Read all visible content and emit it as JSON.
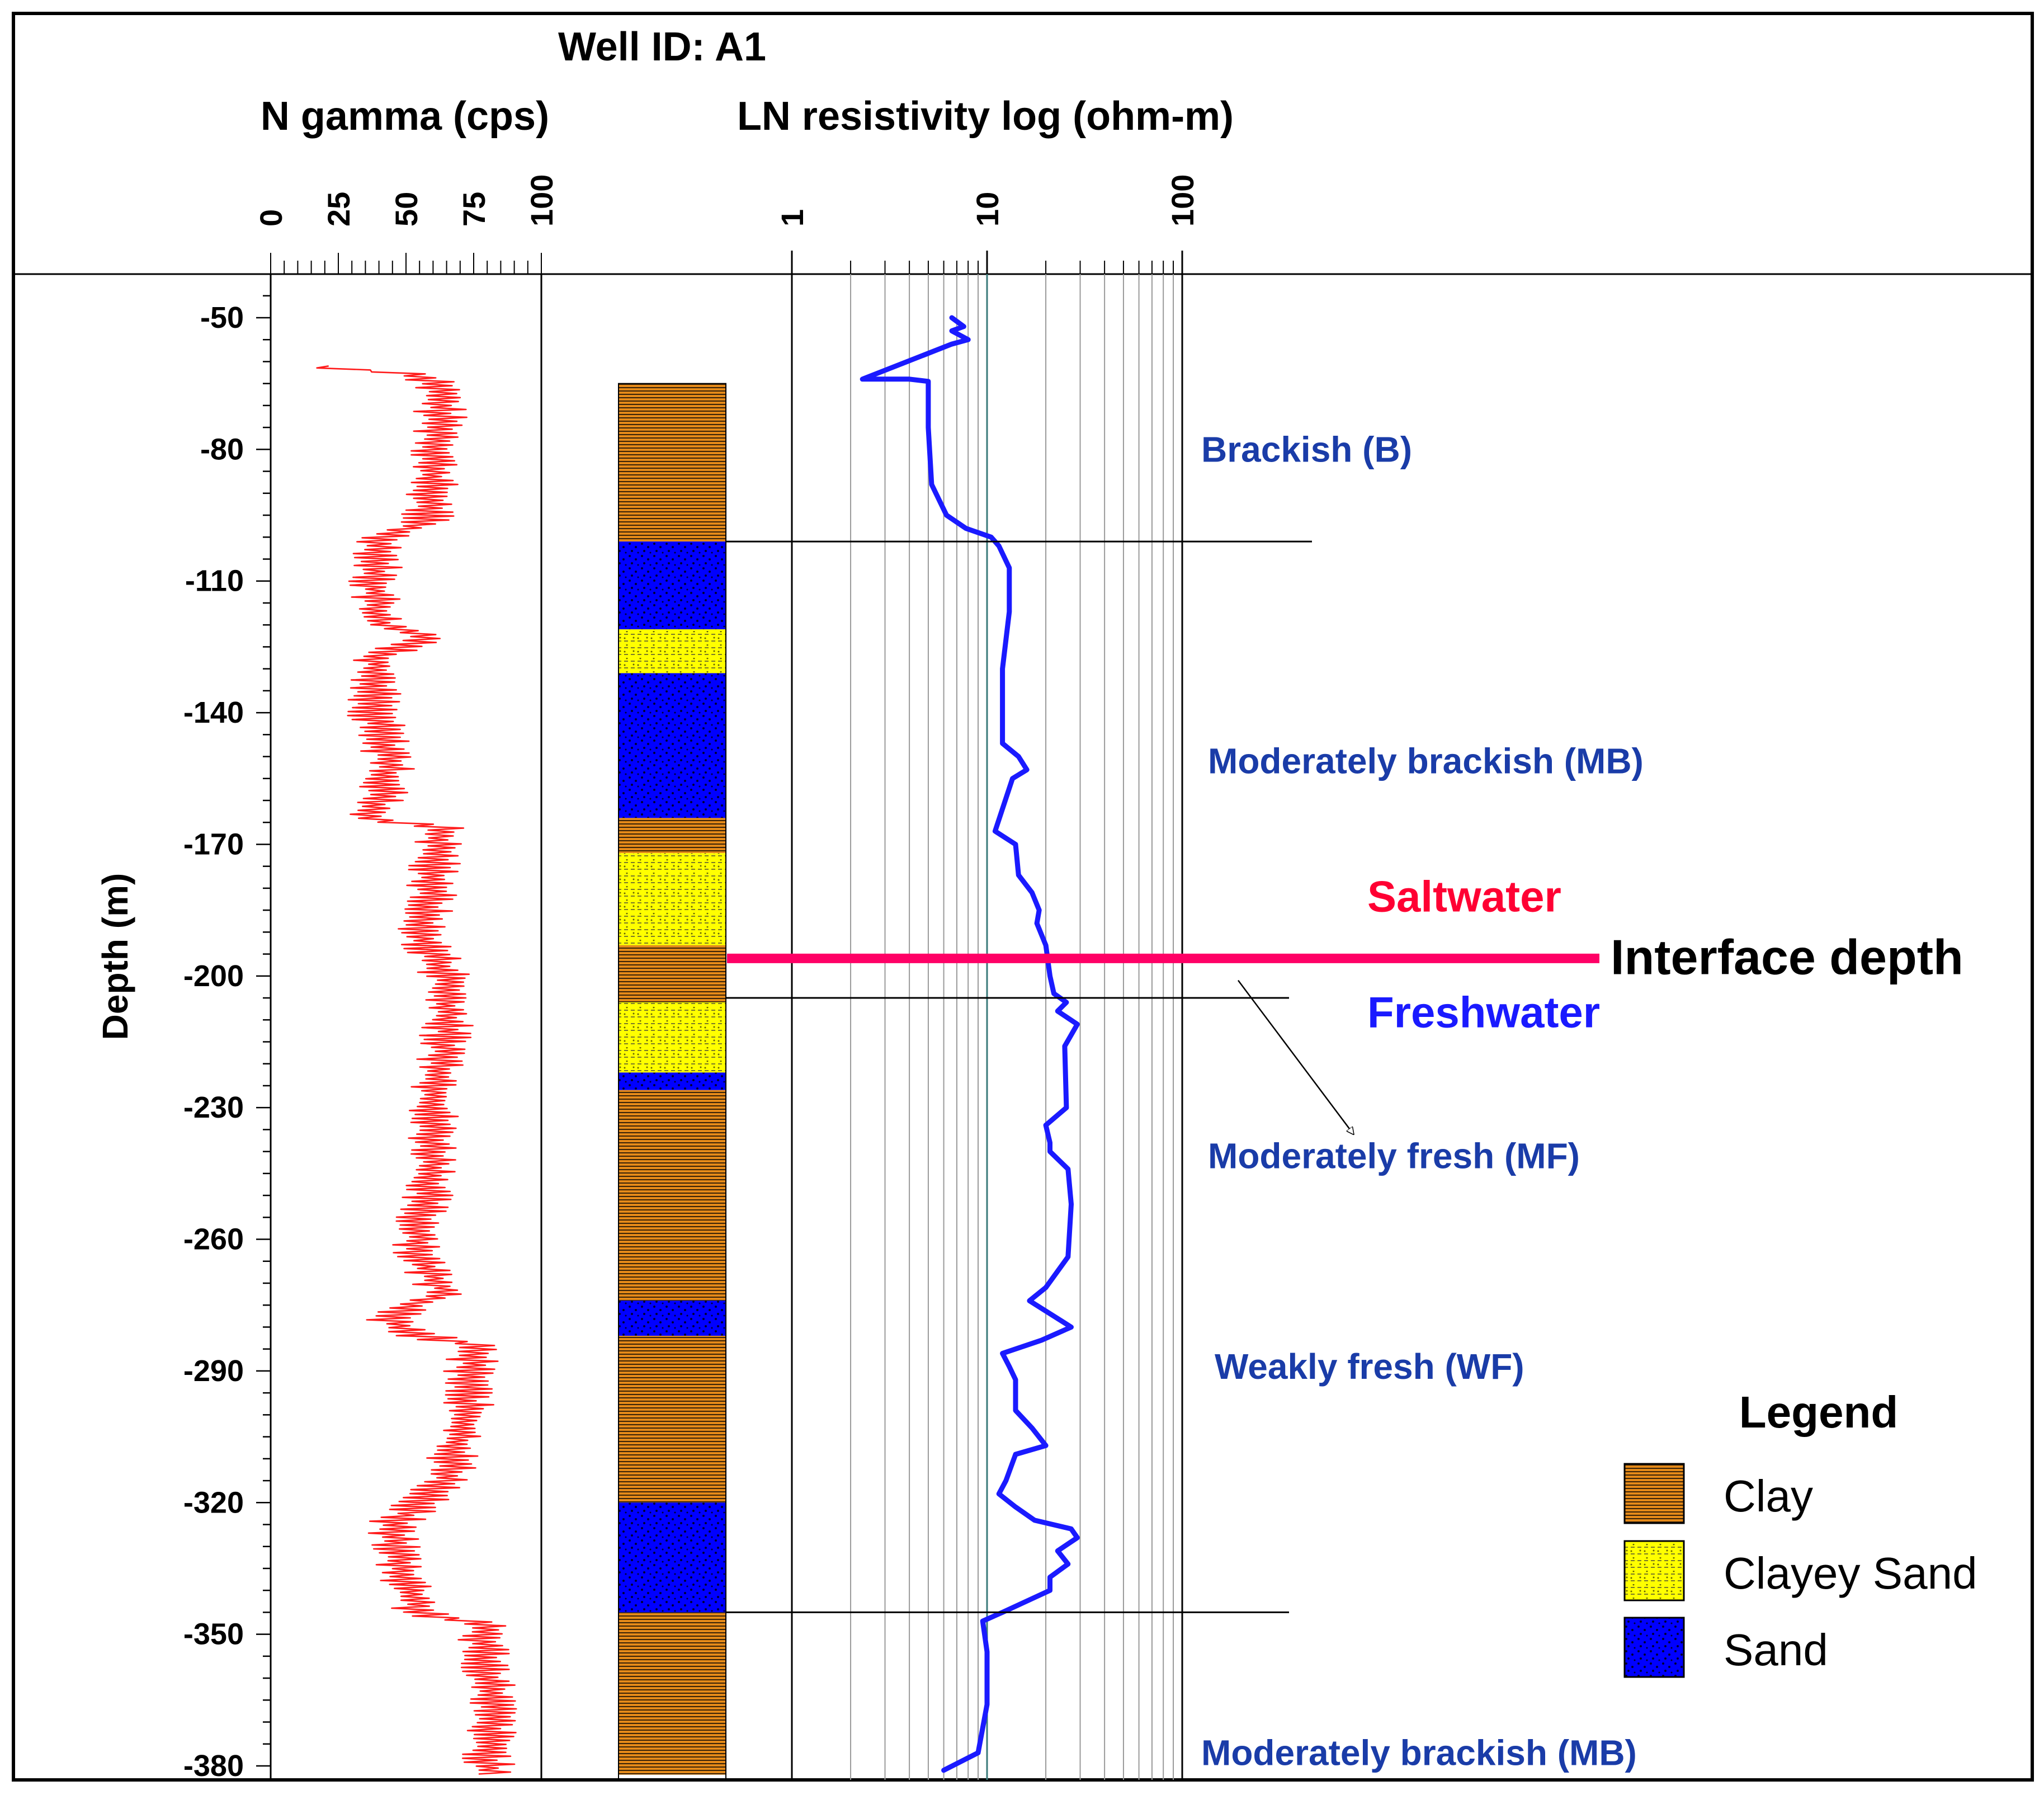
{
  "chart_data": {
    "type": "well-log",
    "title": "Well ID: A1",
    "ylabel": "Depth (m)",
    "ylim": [
      -40,
      -382
    ],
    "yticks": [
      -50,
      -80,
      -110,
      -140,
      -170,
      -200,
      -230,
      -260,
      -290,
      -320,
      -350,
      -380
    ],
    "gamma": {
      "label": "N gamma (cps)",
      "xlim": [
        0,
        100
      ],
      "ticks": [
        0,
        25,
        50,
        75,
        100
      ],
      "line_color": "#ff1a1a",
      "depth_start": -61,
      "depth_end": -382,
      "segments": [
        {
          "depth": -61,
          "value": 15
        },
        {
          "depth": -63,
          "value": 55
        },
        {
          "depth": -65,
          "value": 62
        },
        {
          "depth": -75,
          "value": 63
        },
        {
          "depth": -85,
          "value": 60
        },
        {
          "depth": -96,
          "value": 58
        },
        {
          "depth": -100,
          "value": 42
        },
        {
          "depth": -110,
          "value": 38
        },
        {
          "depth": -120,
          "value": 40
        },
        {
          "depth": -123,
          "value": 60
        },
        {
          "depth": -127,
          "value": 40
        },
        {
          "depth": -140,
          "value": 38
        },
        {
          "depth": -150,
          "value": 44
        },
        {
          "depth": -158,
          "value": 42
        },
        {
          "depth": -164,
          "value": 35
        },
        {
          "depth": -166,
          "value": 62
        },
        {
          "depth": -180,
          "value": 60
        },
        {
          "depth": -190,
          "value": 55
        },
        {
          "depth": -200,
          "value": 65
        },
        {
          "depth": -215,
          "value": 65
        },
        {
          "depth": -230,
          "value": 60
        },
        {
          "depth": -245,
          "value": 60
        },
        {
          "depth": -255,
          "value": 55
        },
        {
          "depth": -265,
          "value": 55
        },
        {
          "depth": -272,
          "value": 65
        },
        {
          "depth": -278,
          "value": 42
        },
        {
          "depth": -282,
          "value": 55
        },
        {
          "depth": -284,
          "value": 75
        },
        {
          "depth": -300,
          "value": 72
        },
        {
          "depth": -315,
          "value": 65
        },
        {
          "depth": -325,
          "value": 45
        },
        {
          "depth": -335,
          "value": 48
        },
        {
          "depth": -345,
          "value": 55
        },
        {
          "depth": -348,
          "value": 78
        },
        {
          "depth": -365,
          "value": 82
        },
        {
          "depth": -382,
          "value": 80
        }
      ]
    },
    "lithology": {
      "units": [
        {
          "top": -65,
          "bottom": -101,
          "type": "Clay"
        },
        {
          "top": -101,
          "bottom": -121,
          "type": "Sand"
        },
        {
          "top": -121,
          "bottom": -131,
          "type": "Clayey Sand"
        },
        {
          "top": -131,
          "bottom": -164,
          "type": "Sand"
        },
        {
          "top": -164,
          "bottom": -172,
          "type": "Clay"
        },
        {
          "top": -172,
          "bottom": -193,
          "type": "Clayey Sand"
        },
        {
          "top": -193,
          "bottom": -206,
          "type": "Clay"
        },
        {
          "top": -206,
          "bottom": -222,
          "type": "Clayey Sand"
        },
        {
          "top": -222,
          "bottom": -226,
          "type": "Sand"
        },
        {
          "top": -226,
          "bottom": -274,
          "type": "Clay"
        },
        {
          "top": -274,
          "bottom": -282,
          "type": "Sand"
        },
        {
          "top": -282,
          "bottom": -320,
          "type": "Clay"
        },
        {
          "top": -320,
          "bottom": -345,
          "type": "Sand"
        },
        {
          "top": -345,
          "bottom": -382,
          "type": "Clay"
        }
      ]
    },
    "resistivity": {
      "label": "LN resistivity log (ohm-m)",
      "scale": "log",
      "xlim": [
        1,
        100
      ],
      "ticks": [
        1,
        10,
        100
      ],
      "line_color": "#1a1aff",
      "points": [
        [
          -50,
          6.6
        ],
        [
          -52,
          7.6
        ],
        [
          -53,
          6.6
        ],
        [
          -55,
          8.0
        ],
        [
          -56,
          6.6
        ],
        [
          -64,
          2.3
        ],
        [
          -64,
          4.0
        ],
        [
          -64.5,
          5.0
        ],
        [
          -75,
          5.0
        ],
        [
          -88,
          5.2
        ],
        [
          -95,
          6.2
        ],
        [
          -98,
          7.8
        ],
        [
          -100,
          10.5
        ],
        [
          -102,
          11.5
        ],
        [
          -107,
          13.0
        ],
        [
          -117,
          13.0
        ],
        [
          -130,
          12.0
        ],
        [
          -147,
          12.0
        ],
        [
          -150,
          14.5
        ],
        [
          -153,
          16.0
        ],
        [
          -155,
          13.5
        ],
        [
          -167,
          11.0
        ],
        [
          -170,
          14.0
        ],
        [
          -177,
          14.5
        ],
        [
          -181,
          17.0
        ],
        [
          -185,
          18.5
        ],
        [
          -188,
          18.0
        ],
        [
          -193,
          20.0
        ],
        [
          -200,
          21.0
        ],
        [
          -204,
          22.0
        ],
        [
          -206,
          25.5
        ],
        [
          -208,
          23.0
        ],
        [
          -211,
          29.0
        ],
        [
          -216,
          25.0
        ],
        [
          -230,
          25.5
        ],
        [
          -234,
          20.0
        ],
        [
          -238,
          21.0
        ],
        [
          -240,
          21.0
        ],
        [
          -244,
          26.0
        ],
        [
          -252,
          27.0
        ],
        [
          -264,
          26.0
        ],
        [
          -271,
          20.0
        ],
        [
          -274,
          16.5
        ],
        [
          -280,
          27.0
        ],
        [
          -283,
          19.0
        ],
        [
          -286,
          12.0
        ],
        [
          -289,
          13.0
        ],
        [
          -292,
          14.0
        ],
        [
          -299,
          14.0
        ],
        [
          -303,
          17.0
        ],
        [
          -307,
          20.0
        ],
        [
          -309,
          14.0
        ],
        [
          -315,
          12.5
        ],
        [
          -318,
          11.5
        ],
        [
          -321,
          14.0
        ],
        [
          -324,
          17.5
        ],
        [
          -326,
          27.0
        ],
        [
          -328,
          29.0
        ],
        [
          -331,
          23.0
        ],
        [
          -334,
          26.0
        ],
        [
          -337,
          21.0
        ],
        [
          -340,
          21.0
        ],
        [
          -345,
          12.0
        ],
        [
          -347,
          9.5
        ],
        [
          -354,
          10.0
        ],
        [
          -366,
          10.0
        ],
        [
          -377,
          9.0
        ],
        [
          -381,
          6.0
        ]
      ]
    },
    "boundaries": [
      {
        "depth": -101
      },
      {
        "depth": -205
      },
      {
        "depth": -345
      }
    ],
    "zones": [
      {
        "label": "Brackish (B)",
        "depth": -80
      },
      {
        "label": "Moderately brackish (MB)",
        "depth": -151
      },
      {
        "label": "Moderately fresh (MF)",
        "depth": -241
      },
      {
        "label": "Weakly fresh (WF)",
        "depth": -289
      },
      {
        "label": "Moderately brackish (MB)",
        "depth": -377
      }
    ],
    "interface": {
      "label": "Interface depth",
      "depth": -196,
      "above_label": "Saltwater",
      "below_label": "Freshwater",
      "color": "#ff0066",
      "saltwater_color": "#ff0033",
      "freshwater_color": "#1a1aff"
    },
    "zone_label_color": "#1a3ca8",
    "legend": {
      "title": "Legend",
      "items": [
        {
          "label": "Clay",
          "color": "#e58a19"
        },
        {
          "label": "Clayey Sand",
          "color": "#ffff00"
        },
        {
          "label": "Sand",
          "color": "#0000ff"
        }
      ]
    }
  }
}
